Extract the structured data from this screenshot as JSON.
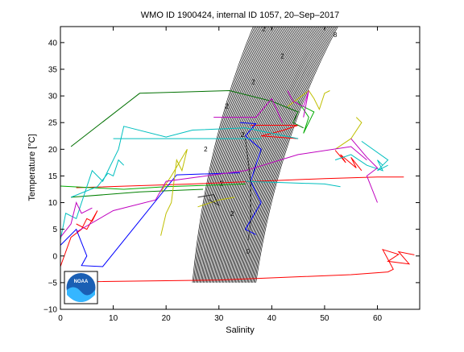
{
  "chart_data": {
    "type": "line",
    "title": "WMO ID 1900424, internal ID 1057, 20–Sep–2017",
    "xlabel": "Salinity",
    "ylabel": "Temperature [°C]",
    "xlim": [
      0,
      68
    ],
    "ylim": [
      -10,
      43
    ],
    "x_ticks": [
      0,
      10,
      20,
      30,
      40,
      50,
      60
    ],
    "y_ticks": [
      -10,
      -5,
      0,
      5,
      10,
      15,
      20,
      25,
      30,
      35,
      40
    ],
    "x_tick_labels": [
      "0",
      "10",
      "20",
      "30",
      "40",
      "50",
      "60"
    ],
    "y_tick_labels": [
      "−10",
      "−5",
      "0",
      "5",
      "10",
      "15",
      "20",
      "25",
      "30",
      "35",
      "40"
    ],
    "grid": false,
    "legend": "none",
    "density_contours": {
      "color": "#000000",
      "s_min": 25,
      "s_max": 37,
      "t_min": -5,
      "top_segment": [
        [
          36.5,
          43
        ],
        [
          52.5,
          43
        ]
      ],
      "count": 60,
      "labels": [
        {
          "text": "0",
          "s": 35.5,
          "t": 0.4
        },
        {
          "text": "2",
          "s": 32.5,
          "t": 7.5
        },
        {
          "text": "2",
          "s": 30.5,
          "t": 13.2
        },
        {
          "text": "2",
          "s": 27.5,
          "t": 19.6
        },
        {
          "text": "2",
          "s": 34.5,
          "t": 22.3
        },
        {
          "text": "2",
          "s": 31.5,
          "t": 27.7
        },
        {
          "text": "2",
          "s": 36.5,
          "t": 32.2
        },
        {
          "text": "2",
          "s": 42.0,
          "t": 37.0
        },
        {
          "text": "2",
          "s": 38.5,
          "t": 42.2
        },
        {
          "text": "8",
          "s": 52.0,
          "t": 41.0
        }
      ]
    },
    "series": [
      {
        "color": "#ff0000",
        "points": [
          [
            7,
            -4.8
          ],
          [
            30,
            -4.5
          ],
          [
            55,
            -3.5
          ],
          [
            62,
            -3.0
          ],
          [
            63,
            -2.5
          ],
          [
            61,
            1.2
          ],
          [
            64,
            0.3
          ],
          [
            62,
            -1
          ],
          [
            66,
            -1.5
          ],
          [
            64,
            0.8
          ],
          [
            67,
            0.2
          ]
        ]
      },
      {
        "color": "#ff0000",
        "points": [
          [
            3,
            12.8
          ],
          [
            25,
            13.5
          ],
          [
            50,
            14.5
          ],
          [
            60,
            14.8
          ],
          [
            65,
            14.8
          ]
        ]
      },
      {
        "color": "#ff0000",
        "points": [
          [
            0,
            -2
          ],
          [
            2,
            3.5
          ],
          [
            4,
            5
          ],
          [
            5,
            7
          ],
          [
            6,
            6.5
          ],
          [
            7,
            8.5
          ],
          [
            5,
            5
          ],
          [
            3,
            6
          ]
        ]
      },
      {
        "color": "#ff0000",
        "points": [
          [
            36,
            24.5
          ],
          [
            45,
            24.5
          ],
          [
            42,
            23.5
          ],
          [
            38,
            22.5
          ],
          [
            45,
            22
          ]
        ]
      },
      {
        "color": "#ff0000",
        "points": [
          [
            52,
            19.8
          ],
          [
            54,
            17.5
          ],
          [
            53,
            19
          ],
          [
            56,
            16.5
          ],
          [
            55,
            18.5
          ],
          [
            57,
            16
          ]
        ]
      },
      {
        "color": "#0000ff",
        "points": [
          [
            0,
            2
          ],
          [
            3,
            5
          ],
          [
            5,
            0
          ],
          [
            4,
            -1.8
          ],
          [
            8,
            -2
          ],
          [
            22,
            15.2
          ],
          [
            34,
            15.6
          ]
        ]
      },
      {
        "color": "#0000ff",
        "points": [
          [
            34,
            25
          ],
          [
            37,
            24.8
          ],
          [
            35,
            22.5
          ],
          [
            38,
            20
          ],
          [
            36,
            14
          ],
          [
            38,
            10
          ],
          [
            35,
            5
          ],
          [
            37,
            4
          ]
        ]
      },
      {
        "color": "#00aa00",
        "points": [
          [
            0,
            13.1
          ],
          [
            12,
            12.5
          ],
          [
            20,
            13.0
          ],
          [
            35,
            13.5
          ]
        ]
      },
      {
        "color": "#008000",
        "points": [
          [
            2,
            11
          ],
          [
            15,
            12
          ],
          [
            27,
            12.5
          ]
        ]
      },
      {
        "color": "#007000",
        "points": [
          [
            2,
            20.5
          ],
          [
            15,
            30.5
          ],
          [
            32,
            31
          ],
          [
            40,
            29
          ],
          [
            45,
            27
          ],
          [
            44,
            25
          ],
          [
            46,
            24
          ]
        ]
      },
      {
        "color": "#00aa00",
        "points": [
          [
            45,
            29
          ],
          [
            47,
            26
          ],
          [
            46,
            23
          ],
          [
            48,
            27
          ],
          [
            46,
            28
          ]
        ]
      },
      {
        "color": "#00bfbf",
        "points": [
          [
            0,
            3
          ],
          [
            1,
            8
          ],
          [
            3,
            7
          ],
          [
            6,
            16
          ],
          [
            8,
            14
          ],
          [
            11,
            20
          ],
          [
            12,
            24.3
          ],
          [
            20,
            22.3
          ],
          [
            25,
            23.6
          ],
          [
            35,
            24
          ],
          [
            45,
            22
          ]
        ]
      },
      {
        "color": "#00bfbf",
        "points": [
          [
            10,
            22
          ],
          [
            30,
            22
          ],
          [
            38,
            22
          ]
        ]
      },
      {
        "color": "#00bfbf",
        "points": [
          [
            2,
            11
          ],
          [
            7,
            13
          ],
          [
            9,
            15.5
          ],
          [
            10,
            15
          ],
          [
            11,
            18
          ],
          [
            12,
            17
          ]
        ]
      },
      {
        "color": "#00bfbf",
        "points": [
          [
            35,
            14
          ],
          [
            50,
            13.5
          ],
          [
            53,
            13
          ]
        ]
      },
      {
        "color": "#00bfbf",
        "points": [
          [
            52,
            18
          ],
          [
            55,
            19
          ],
          [
            58,
            17
          ],
          [
            61,
            16
          ],
          [
            60,
            18
          ],
          [
            61,
            17
          ]
        ]
      },
      {
        "color": "#00bfbf",
        "points": [
          [
            57,
            21.5
          ],
          [
            62,
            18
          ],
          [
            60,
            16
          ],
          [
            62,
            17
          ]
        ]
      },
      {
        "color": "#bfbf00",
        "points": [
          [
            19,
            3.8
          ],
          [
            20,
            8
          ],
          [
            21,
            10
          ],
          [
            22,
            18
          ],
          [
            23,
            16
          ],
          [
            24,
            20
          ],
          [
            21,
            15
          ],
          [
            19,
            12
          ]
        ]
      },
      {
        "color": "#bfbf00",
        "points": [
          [
            26,
            9.2
          ],
          [
            30,
            10.5
          ],
          [
            33,
            11.0
          ]
        ]
      },
      {
        "color": "#bfbf00",
        "points": [
          [
            43,
            28
          ],
          [
            47,
            31
          ],
          [
            48,
            29.5
          ],
          [
            49,
            27.5
          ],
          [
            50,
            30.5
          ],
          [
            51,
            31
          ]
        ]
      },
      {
        "color": "#bfbf00",
        "points": [
          [
            52,
            20
          ],
          [
            55,
            22
          ],
          [
            57,
            25
          ],
          [
            56,
            26
          ]
        ]
      },
      {
        "color": "#bf00bf",
        "points": [
          [
            0,
            3.5
          ],
          [
            2,
            6
          ],
          [
            3,
            10
          ],
          [
            4,
            8
          ],
          [
            6,
            9
          ]
        ]
      },
      {
        "color": "#bf00bf",
        "points": [
          [
            3,
            4.5
          ],
          [
            10,
            8.5
          ],
          [
            18,
            10.5
          ],
          [
            20,
            14
          ],
          [
            35,
            16
          ],
          [
            45,
            19
          ],
          [
            55,
            20.5
          ],
          [
            58,
            18
          ]
        ]
      },
      {
        "color": "#bf00bf",
        "points": [
          [
            43,
            31
          ],
          [
            44,
            29
          ],
          [
            46,
            28
          ],
          [
            47,
            31
          ],
          [
            46,
            26
          ]
        ]
      },
      {
        "color": "#bf00bf",
        "points": [
          [
            29,
            26
          ],
          [
            37,
            26
          ],
          [
            40,
            29.5
          ],
          [
            42,
            25
          ]
        ]
      },
      {
        "color": "#bf00bf",
        "points": [
          [
            55,
            22
          ],
          [
            58,
            18.5
          ],
          [
            60,
            16.5
          ],
          [
            58,
            15
          ],
          [
            60,
            10
          ]
        ]
      },
      {
        "color": "#303030",
        "points": [
          [
            26,
            11
          ],
          [
            29,
            11.5
          ],
          [
            30,
            9.5
          ],
          [
            28,
            10.6
          ]
        ]
      },
      {
        "color": "#303030",
        "points": [
          [
            35,
            22
          ],
          [
            36,
            14
          ],
          [
            36,
            6
          ],
          [
            35.5,
            3
          ]
        ]
      }
    ],
    "logo": {
      "text": "NOAA"
    }
  }
}
